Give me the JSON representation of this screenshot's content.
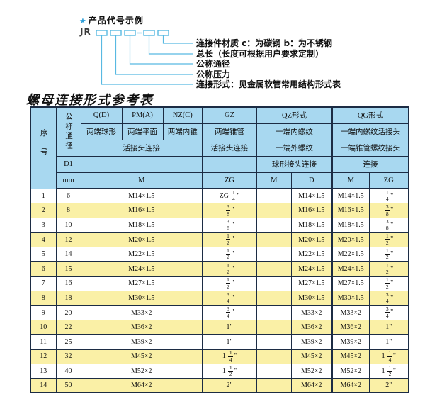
{
  "diagram": {
    "star": "★",
    "title": "产品代号示例",
    "prefix": "JR",
    "labels": [
      "连接件材质  c：为碳钢  b：为不锈钢",
      "总长（长度可根据用户要求定制）",
      "公称通径",
      "公称压力",
      "连接形式：见金属软管常用结构形式表"
    ]
  },
  "table": {
    "title": "螺母连接形式参考表",
    "header": {
      "seq": "序号",
      "dn": "公称通径",
      "d1": "D1",
      "mm": "mm",
      "q_code": "Q(D)",
      "q_desc": "两端球形",
      "pm_code": "PM(A)",
      "pm_desc": "两端平面",
      "nz_code": "NZ(C)",
      "nz_desc": "两端内锥",
      "gz_code": "GZ",
      "gz_desc": "两端锥管",
      "gz_row3": "活接头连接",
      "gz_unit": "ZG",
      "qpm_row3": "活接头连接",
      "m_unit": "M",
      "qz_code": "QZ形式",
      "qz_row2": "一端内螺纹",
      "qz_row3": "一端外螺纹",
      "qz_row4": "球形接头连接",
      "qz_unit_m": "M",
      "qz_unit_d": "D",
      "qg_code": "QG形式",
      "qg_row2": "一端内螺纹活接头",
      "qg_row3": "一端锥管螺纹接头",
      "qg_row4": "连接",
      "qg_unit_m": "M",
      "qg_unit_zg": "ZG"
    },
    "rows": [
      {
        "seq": "1",
        "dn": "6",
        "m": "M14×1.5",
        "gz": "ZG 1/4\"",
        "qz_m": "",
        "qz_d": "M14×1.5",
        "qg_m": "M14×1.5",
        "qg_zg": "1/4\""
      },
      {
        "seq": "2",
        "dn": "8",
        "m": "M16×1.5",
        "gz": "3/8\"",
        "qz_m": "",
        "qz_d": "M16×1.5",
        "qg_m": "M16×1.5",
        "qg_zg": "3/8\""
      },
      {
        "seq": "3",
        "dn": "10",
        "m": "M18×1.5",
        "gz": "3/8\"",
        "qz_m": "",
        "qz_d": "M18×1.5",
        "qg_m": "M18×1.5",
        "qg_zg": "3/8\""
      },
      {
        "seq": "4",
        "dn": "12",
        "m": "M20×1.5",
        "gz": "1/2\"",
        "qz_m": "",
        "qz_d": "M20×1.5",
        "qg_m": "M20×1.5",
        "qg_zg": "1/2\""
      },
      {
        "seq": "5",
        "dn": "14",
        "m": "M22×1.5",
        "gz": "1/2\"",
        "qz_m": "",
        "qz_d": "M22×1.5",
        "qg_m": "M22×1.5",
        "qg_zg": "1/2\""
      },
      {
        "seq": "6",
        "dn": "15",
        "m": "M24×1.5",
        "gz": "1/2\"",
        "qz_m": "",
        "qz_d": "M24×1.5",
        "qg_m": "M24×1.5",
        "qg_zg": "1/2\""
      },
      {
        "seq": "7",
        "dn": "16",
        "m": "M27×1.5",
        "gz": "1/2\"",
        "qz_m": "",
        "qz_d": "M27×1.5",
        "qg_m": "M27×1.5",
        "qg_zg": "1/2\""
      },
      {
        "seq": "8",
        "dn": "18",
        "m": "M30×1.5",
        "gz": "3/4\"",
        "qz_m": "",
        "qz_d": "M30×1.5",
        "qg_m": "M30×1.5",
        "qg_zg": "3/4\""
      },
      {
        "seq": "9",
        "dn": "20",
        "m": "M33×2",
        "gz": "3/4\"",
        "qz_m": "",
        "qz_d": "M33×2",
        "qg_m": "M33×2",
        "qg_zg": "3/4\""
      },
      {
        "seq": "10",
        "dn": "22",
        "m": "M36×2",
        "gz": "1\"",
        "qz_m": "",
        "qz_d": "M36×2",
        "qg_m": "M36×2",
        "qg_zg": "1\""
      },
      {
        "seq": "11",
        "dn": "25",
        "m": "M39×2",
        "gz": "1\"",
        "qz_m": "",
        "qz_d": "M39×2",
        "qg_m": "M39×2",
        "qg_zg": "1\""
      },
      {
        "seq": "12",
        "dn": "32",
        "m": "M45×2",
        "gz": "1 1/4\"",
        "qz_m": "",
        "qz_d": "M45×2",
        "qg_m": "M45×2",
        "qg_zg": "1 1/4\""
      },
      {
        "seq": "13",
        "dn": "40",
        "m": "M52×2",
        "gz": "1 1/2\"",
        "qz_m": "",
        "qz_d": "M52×2",
        "qg_m": "M52×2",
        "qg_zg": "1 1/2\""
      },
      {
        "seq": "14",
        "dn": "50",
        "m": "M64×2",
        "gz": "2\"",
        "qz_m": "",
        "qz_d": "M64×2",
        "qg_m": "M64×2",
        "qg_zg": "2\""
      }
    ]
  },
  "colors": {
    "header_blue": "#a8d8f0",
    "row_yellow": "#faf0a6",
    "border_navy": "#1c2c44",
    "diagram_cyan": "#58b9e2",
    "star_blue": "#2f9fd8"
  }
}
